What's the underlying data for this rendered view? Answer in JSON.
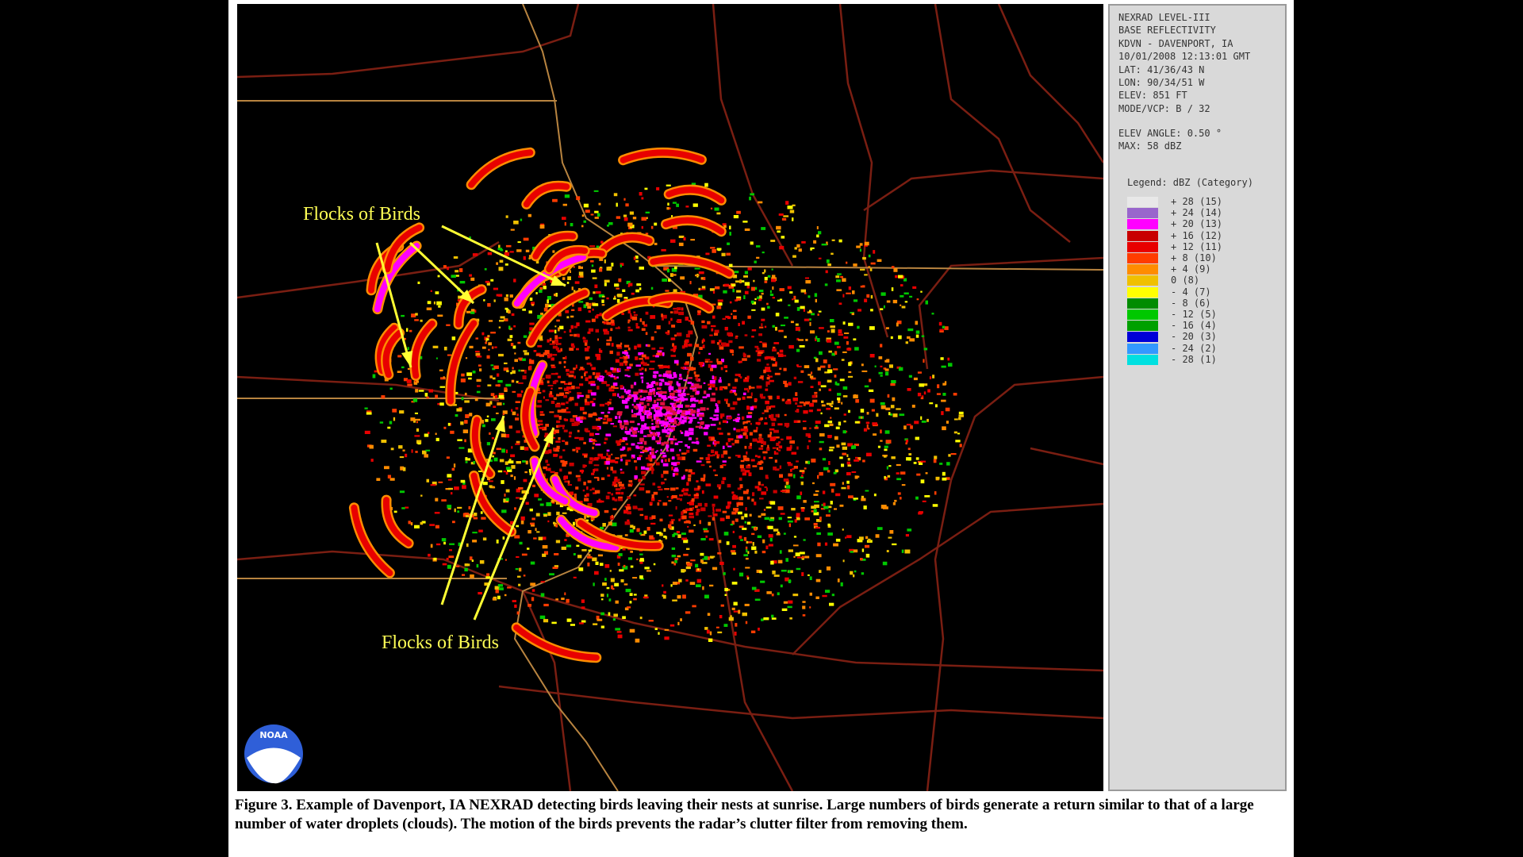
{
  "panel": {
    "lines": [
      "NEXRAD LEVEL-III",
      "BASE REFLECTIVITY",
      "KDVN - DAVENPORT, IA",
      "10/01/2008 12:13:01 GMT",
      "LAT: 41/36/43 N",
      "LON: 90/34/51 W",
      "ELEV: 851 FT",
      "MODE/VCP: B / 32"
    ],
    "lines2": [
      "ELEV ANGLE: 0.50 °",
      "MAX: 58 dBZ"
    ],
    "legend_title": "Legend: dBZ (Category)",
    "legend": [
      {
        "label": "+ 28 (15)",
        "color": "#e8e8e8"
      },
      {
        "label": "+ 24 (14)",
        "color": "#9966cc"
      },
      {
        "label": "+ 20 (13)",
        "color": "#ff00ff"
      },
      {
        "label": "+ 16 (12)",
        "color": "#c80000"
      },
      {
        "label": "+ 12 (11)",
        "color": "#e80000"
      },
      {
        "label": "+ 8 (10)",
        "color": "#ff3c00"
      },
      {
        "label": "+ 4 (9)",
        "color": "#ff8c00"
      },
      {
        "label": "0 (8)",
        "color": "#f0c000"
      },
      {
        "label": "- 4 (7)",
        "color": "#ffff00"
      },
      {
        "label": "- 8 (6)",
        "color": "#008c00"
      },
      {
        "label": "- 12 (5)",
        "color": "#00c800"
      },
      {
        "label": "- 16 (4)",
        "color": "#00a000"
      },
      {
        "label": "- 20 (3)",
        "color": "#0000d8"
      },
      {
        "label": "- 24 (2)",
        "color": "#3399ff"
      },
      {
        "label": "- 28 (1)",
        "color": "#00e0e0"
      }
    ]
  },
  "annotations": [
    "Flocks of Birds",
    "Flocks of Birds"
  ],
  "logo": "NOAA",
  "caption": "Figure 3.  Example of Davenport, IA NEXRAD detecting birds leaving their nests at sunrise.  Large numbers of birds generate a return similar to that of a large number of water droplets (clouds). The motion of the birds prevents the radar’s clutter filter from removing them."
}
